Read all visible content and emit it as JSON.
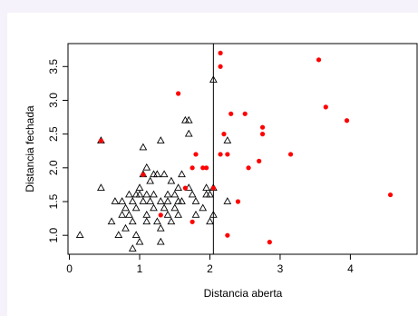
{
  "chart_data": {
    "type": "scatter",
    "xlabel": "Distancia aberta",
    "ylabel": "Distancia fechada",
    "xlim": [
      -0.02,
      4.95
    ],
    "ylim": [
      0.72,
      3.84
    ],
    "xticks": [
      0,
      1,
      2,
      3,
      4
    ],
    "yticks": [
      {
        "value": 1,
        "label": "1.0"
      },
      {
        "value": 1.5,
        "label": "1.5"
      },
      {
        "value": 2,
        "label": "2.0"
      },
      {
        "value": 2.5,
        "label": "2.5"
      },
      {
        "value": 3,
        "label": "3.0"
      },
      {
        "value": 3.5,
        "label": "3.5"
      }
    ],
    "vline": 2.05,
    "series": [
      {
        "color": "#000000",
        "marker": "triangle",
        "x": [
          0.15,
          0.45,
          0.45,
          0.6,
          0.65,
          0.7,
          0.75,
          0.75,
          0.8,
          0.8,
          0.85,
          0.85,
          0.9,
          0.9,
          0.9,
          0.95,
          0.95,
          0.95,
          1.0,
          1.0,
          1.0,
          1.05,
          1.05,
          1.05,
          1.1,
          1.1,
          1.1,
          1.1,
          1.15,
          1.15,
          1.2,
          1.2,
          1.2,
          1.25,
          1.25,
          1.3,
          1.3,
          1.3,
          1.3,
          1.35,
          1.35,
          1.4,
          1.4,
          1.45,
          1.45,
          1.5,
          1.5,
          1.55,
          1.55,
          1.6,
          1.65,
          1.7,
          1.7,
          1.7,
          1.75,
          1.8,
          1.8,
          1.9,
          1.95,
          2.0,
          2.0,
          2.05,
          2.05,
          2.05,
          2.25,
          2.25,
          1.95,
          1.55,
          1.6,
          1.4
        ],
        "y": [
          1.0,
          2.4,
          1.7,
          1.2,
          1.5,
          1.0,
          1.5,
          1.3,
          1.1,
          1.4,
          1.6,
          1.3,
          1.5,
          1.2,
          0.8,
          1.6,
          1.4,
          1.0,
          1.6,
          0.9,
          1.7,
          2.3,
          1.9,
          1.5,
          1.6,
          1.3,
          1.2,
          2.0,
          1.8,
          1.5,
          1.9,
          1.6,
          1.4,
          1.9,
          1.2,
          2.4,
          1.5,
          1.1,
          0.9,
          1.9,
          1.4,
          1.6,
          1.3,
          1.8,
          1.2,
          1.6,
          1.4,
          1.7,
          1.3,
          1.5,
          2.7,
          2.7,
          2.5,
          1.7,
          1.6,
          1.5,
          1.3,
          1.4,
          1.6,
          1.6,
          1.2,
          1.7,
          3.3,
          1.3,
          2.4,
          1.5,
          1.7,
          1.5,
          1.9,
          1.5
        ]
      },
      {
        "color": "#ff0000",
        "marker": "circle",
        "x": [
          0.45,
          1.05,
          1.3,
          1.55,
          1.65,
          1.75,
          1.75,
          1.8,
          1.9,
          1.95,
          2.05,
          2.15,
          2.15,
          2.15,
          2.2,
          2.25,
          2.25,
          2.3,
          2.4,
          2.5,
          2.55,
          2.7,
          2.75,
          2.75,
          2.85,
          3.15,
          3.55,
          3.65,
          3.95,
          4.57
        ],
        "y": [
          2.4,
          1.9,
          1.3,
          3.1,
          1.7,
          2.0,
          1.2,
          2.2,
          2.0,
          2.0,
          1.7,
          3.7,
          3.5,
          2.2,
          2.5,
          2.2,
          1.0,
          2.8,
          1.5,
          2.8,
          2.0,
          2.1,
          2.6,
          2.5,
          0.9,
          2.2,
          3.6,
          2.9,
          2.7,
          1.6
        ]
      }
    ]
  }
}
